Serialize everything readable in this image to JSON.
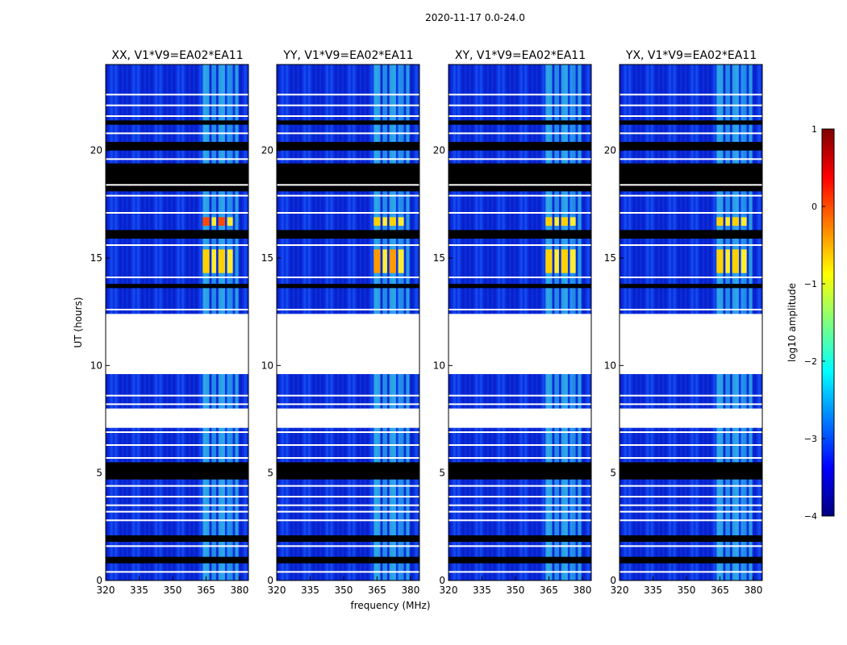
{
  "figure": {
    "suptitle": "2020-11-17 0.0-24.0"
  },
  "chart_data": [
    {
      "type": "heatmap",
      "title": "XX, V1*V9=EA02*EA11",
      "xlabel": "",
      "ylabel": "UT (hours)",
      "x_ticks": [
        "320",
        "335",
        "350",
        "365",
        "380"
      ],
      "y_ticks": [
        "0",
        "5",
        "10",
        "15",
        "20"
      ],
      "xlim": [
        320,
        384
      ],
      "ylim": [
        0,
        24
      ],
      "strong_signal_hours": [
        [
          14.3,
          15.4
        ],
        [
          16.5,
          16.9
        ]
      ]
    },
    {
      "type": "heatmap",
      "title": "YY, V1*V9=EA02*EA11",
      "xlabel": "frequency (MHz)",
      "ylabel": "",
      "x_ticks": [
        "320",
        "335",
        "350",
        "365",
        "380"
      ],
      "y_ticks": [
        "0",
        "5",
        "10",
        "15",
        "20"
      ],
      "xlim": [
        320,
        384
      ],
      "ylim": [
        0,
        24
      ],
      "strong_signal_hours": [
        [
          14.3,
          15.4
        ],
        [
          16.5,
          16.9
        ]
      ]
    },
    {
      "type": "heatmap",
      "title": "XY, V1*V9=EA02*EA11",
      "xlabel": "",
      "ylabel": "",
      "x_ticks": [
        "320",
        "335",
        "350",
        "365",
        "380"
      ],
      "y_ticks": [
        "0",
        "5",
        "10",
        "15",
        "20"
      ],
      "xlim": [
        320,
        384
      ],
      "ylim": [
        0,
        24
      ],
      "strong_signal_hours": [
        [
          14.3,
          15.4
        ],
        [
          16.5,
          16.9
        ]
      ]
    },
    {
      "type": "heatmap",
      "title": "YX, V1*V9=EA02*EA11",
      "xlabel": "",
      "ylabel": "",
      "x_ticks": [
        "320",
        "335",
        "350",
        "365",
        "380"
      ],
      "y_ticks": [
        "0",
        "5",
        "10",
        "15",
        "20"
      ],
      "xlim": [
        320,
        384
      ],
      "ylim": [
        0,
        24
      ],
      "strong_signal_hours": [
        [
          14.3,
          15.4
        ],
        [
          16.5,
          16.9
        ]
      ]
    }
  ],
  "colorbar": {
    "label": "log10 amplitude",
    "ticks": [
      "1",
      "0",
      "−1",
      "−2",
      "−3",
      "−4"
    ],
    "range": [
      -4,
      1
    ],
    "colors": [
      "#00007f",
      "#0000ff",
      "#007fff",
      "#00ffff",
      "#7fff7f",
      "#ffff00",
      "#ff7f00",
      "#ff0000",
      "#7f0000"
    ]
  },
  "data_structure": {
    "missing_hours": [
      [
        9.6,
        12.4
      ],
      [
        7.1,
        8.0
      ]
    ],
    "black_band_hours": [
      [
        18.1,
        19.4
      ],
      [
        4.7,
        5.5
      ],
      [
        1.8,
        2.1
      ],
      [
        0.8,
        1.1
      ],
      [
        20.0,
        20.4
      ],
      [
        15.9,
        16.3
      ],
      [
        13.6,
        13.8
      ],
      [
        21.2,
        21.4
      ]
    ],
    "white_line_hours": [
      22.6,
      22.1,
      21.6,
      20.8,
      19.6,
      18.4,
      17.9,
      17.1,
      15.6,
      14.1,
      12.6,
      8.6,
      8.2,
      6.9,
      6.3,
      5.7,
      4.4,
      3.9,
      3.5,
      3.2,
      2.8,
      1.6,
      0.4
    ],
    "rfi_channels_mhz": [
      [
        363.5,
        366.5
      ],
      [
        367.5,
        369.5
      ],
      [
        370.5,
        373.5
      ],
      [
        374.5,
        377
      ],
      [
        378,
        379.5
      ]
    ]
  }
}
